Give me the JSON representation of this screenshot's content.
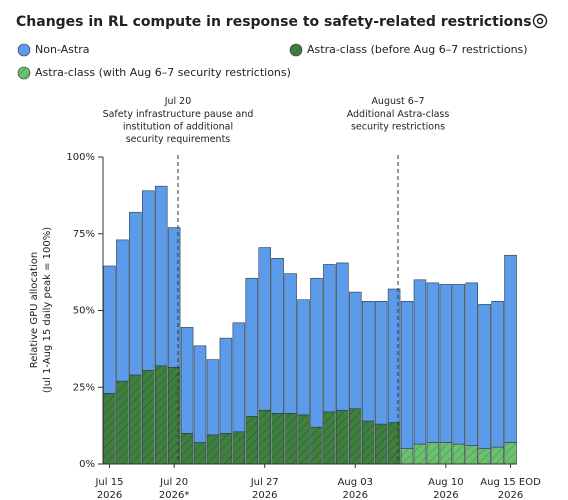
{
  "chart_data": {
    "type": "stacked-bar",
    "title": "Changes in RL compute in response to safety-related restrictions",
    "y_label": "Relative GPU allocation\n(Jul 1-Aug 15 daily peak = 100%)",
    "categories": [
      "Jul 15\n2026",
      null,
      null,
      null,
      null,
      "Jul 20\n2026*",
      null,
      null,
      null,
      null,
      null,
      null,
      "Jul 27\n2026",
      null,
      null,
      null,
      null,
      null,
      null,
      "Aug 03\n2026",
      null,
      null,
      null,
      null,
      null,
      null,
      "Aug 10\n2026",
      null,
      null,
      null,
      null,
      "Aug 15 EOD\n2026"
    ],
    "series": [
      {
        "name": "Non-Astra",
        "color": "#5b9bea",
        "hatch": false,
        "values": [
          41.5,
          46,
          53,
          58.5,
          58.5,
          45.5,
          34.5,
          31.5,
          24.5,
          31,
          35.5,
          45,
          53,
          50.5,
          45.5,
          37.5,
          48.5,
          48,
          48,
          38,
          39,
          40,
          43.5,
          48,
          53.5,
          52,
          51.5,
          52,
          53,
          47,
          47.5,
          61
        ]
      },
      {
        "name": "Astra-class (before Aug 6–7 restrictions)",
        "color": "#3f7f3f",
        "hatch": true,
        "values": [
          23,
          27,
          29,
          30.5,
          32,
          31.5,
          10,
          7,
          9.5,
          10,
          10.5,
          15.5,
          17.5,
          16.5,
          16.5,
          16,
          12,
          17,
          17.5,
          18,
          14,
          13,
          13.5,
          null,
          null,
          null,
          null,
          null,
          null,
          null,
          null,
          null
        ]
      },
      {
        "name": "Astra-class (with Aug 6–7 security restrictions)",
        "color": "#6cc26c",
        "hatch": true,
        "values": [
          null,
          null,
          null,
          null,
          null,
          null,
          null,
          null,
          null,
          null,
          null,
          null,
          null,
          null,
          null,
          null,
          null,
          null,
          null,
          null,
          null,
          null,
          null,
          5,
          6.5,
          7,
          7,
          6.5,
          6,
          5,
          5.5,
          7
        ]
      }
    ],
    "ylim": [
      0,
      100
    ],
    "yticks": [
      {
        "value": 0,
        "label": "0%"
      },
      {
        "value": 25,
        "label": "25%"
      },
      {
        "value": 50,
        "label": "50%"
      },
      {
        "value": 75,
        "label": "75%"
      },
      {
        "value": 100,
        "label": "100%"
      }
    ],
    "grid": false,
    "annotations": [
      {
        "title": "Jul 20",
        "text": "Safety infrastructure pause and\ninstitution of additional\nsecurity requirements"
      },
      {
        "title": "August 6–7",
        "text": "Additional Astra-class\nsecurity restrictions"
      }
    ]
  }
}
